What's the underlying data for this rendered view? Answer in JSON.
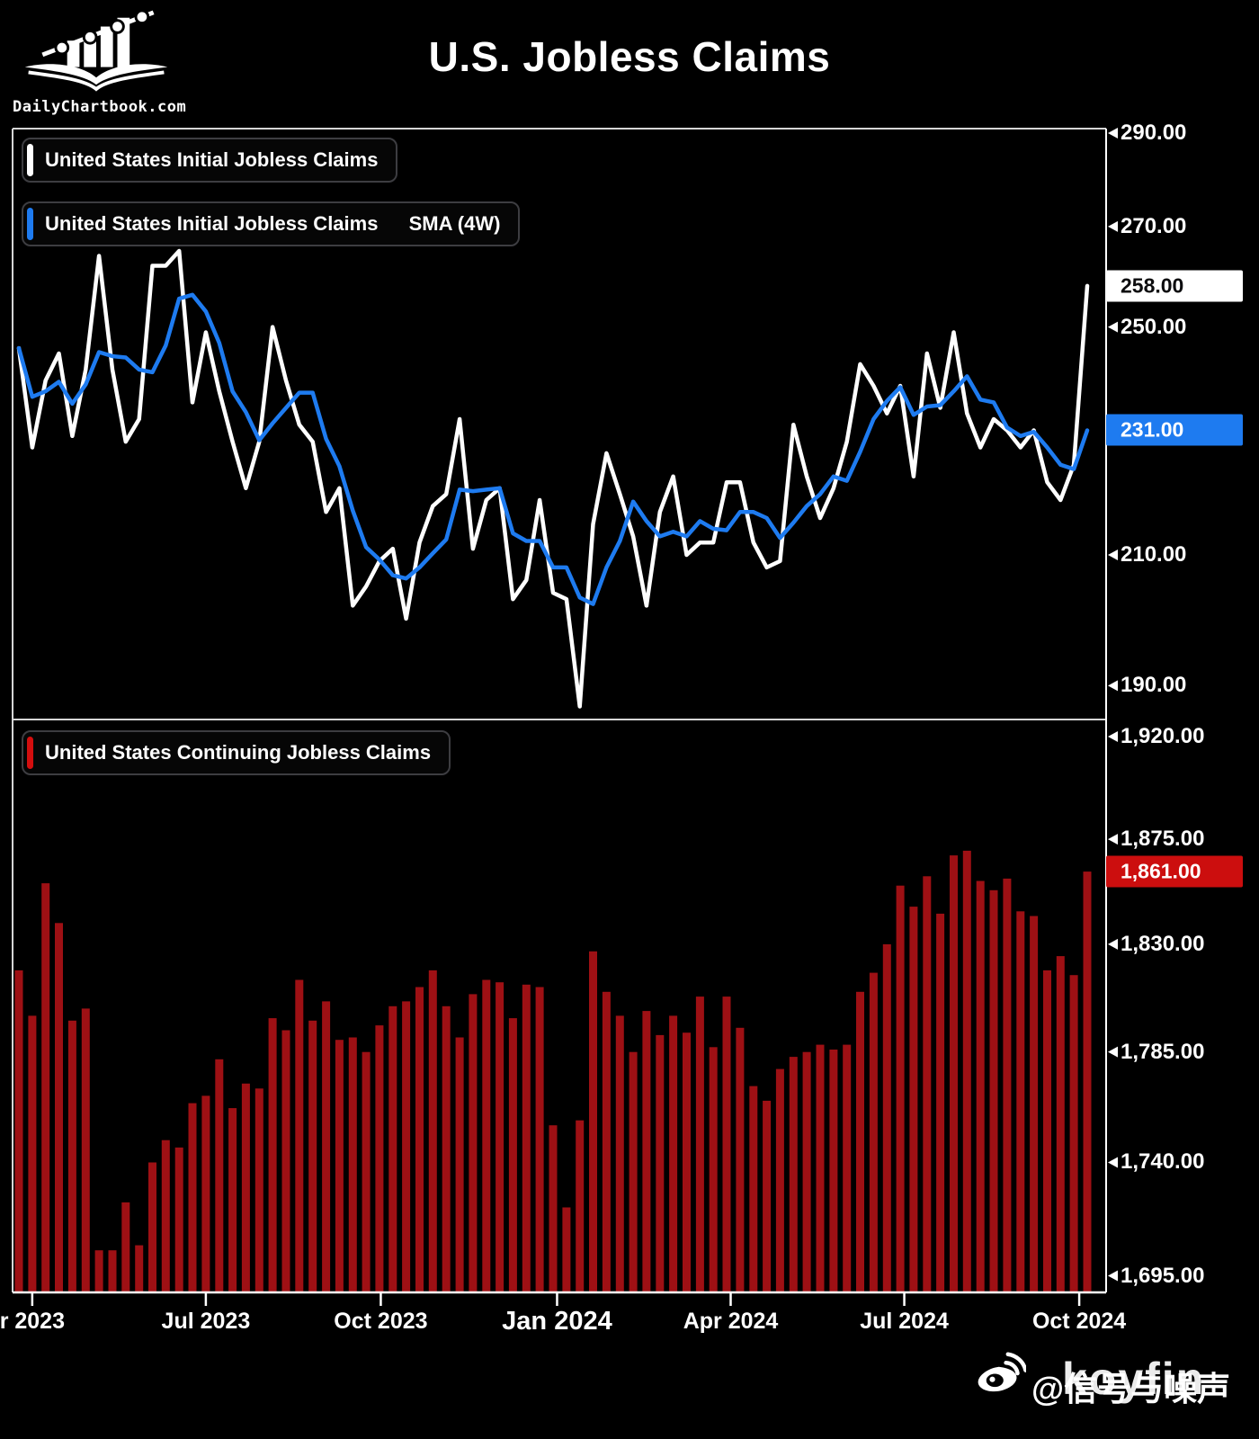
{
  "header": {
    "title": "U.S. Jobless Claims",
    "logo_caption": "DailyChartbook.com",
    "logo_icon": "book-chart-icon"
  },
  "watermark": {
    "platform_icon": "weibo-icon",
    "handle": "@信号与噪声",
    "overlay_text": "koyfin"
  },
  "chart_data": {
    "type": "line+bar",
    "frequency": "weekly",
    "x_start": "2023-03-25",
    "x_end": "2024-10-05",
    "x_tick_labels": [
      {
        "label": "r 2023",
        "week": 1.0,
        "em": false
      },
      {
        "label": "Jul 2023",
        "week": 14.0,
        "em": false
      },
      {
        "label": "Oct 2023",
        "week": 27.1,
        "em": false
      },
      {
        "label": "Jan 2024",
        "week": 40.3,
        "em": true
      },
      {
        "label": "Apr 2024",
        "week": 53.3,
        "em": false
      },
      {
        "label": "Jul 2024",
        "week": 66.3,
        "em": false
      },
      {
        "label": "Oct 2024",
        "week": 79.4,
        "em": false
      }
    ],
    "panels": [
      {
        "name": "initial-jobless-claims",
        "type": "line",
        "y_scale": "log",
        "y_range": [
          185.4,
          291.0
        ],
        "y_ticks": [
          {
            "v": 290,
            "label": "290.00"
          },
          {
            "v": 270,
            "label": "270.00"
          },
          {
            "v": 250,
            "label": "250.00"
          },
          {
            "v": 210,
            "label": "210.00"
          },
          {
            "v": 190,
            "label": "190.00"
          }
        ],
        "series": [
          {
            "name": "United States Initial Jobless Claims",
            "legend_label": "United States Initial Jobless Claims",
            "legend_suffix": "",
            "color": "#ffffff",
            "last_value": 258,
            "last_label": "258.00",
            "badge_bg": "#ffffff",
            "badge_fg": "#0d0d0f",
            "values": [
              246,
              228,
              240,
              245,
              230,
              242,
              264,
              242,
              229,
              233,
              262,
              262,
              265,
              236,
              249,
              238,
              229,
              221,
              229,
              250,
              240,
              232,
              229,
              217,
              221,
              202,
              205,
              209,
              211,
              200,
              212,
              218,
              220,
              233,
              211,
              219,
              221,
              203,
              206,
              219,
              204,
              203,
              187,
              215,
              227,
              220,
              213,
              202,
              217,
              223,
              210,
              212,
              212,
              222,
              222,
              212,
              208,
              209,
              232,
              223,
              216,
              221,
              229,
              243,
              239,
              234,
              239,
              223,
              245,
              235,
              249,
              234,
              228,
              233,
              231,
              228,
              231,
              222,
              219,
              225,
              258
            ]
          },
          {
            "name": "United States Initial Jobless Claims SMA (4W)",
            "legend_label": "United States Initial Jobless Claims",
            "legend_suffix": "SMA (4W)",
            "color": "#1e7bf0",
            "last_value": 231,
            "last_label": "231.00",
            "badge_bg": "#1e7bf0",
            "badge_fg": "#ffffff",
            "values": [
              246,
              237,
              238,
              239.75,
              235.75,
              239.25,
              245.25,
              244.5,
              244.25,
              242,
              241.5,
              246.5,
              255.5,
              256.25,
              253,
              247,
              238,
              234.25,
              229.25,
              232.25,
              235,
              237.75,
              237.75,
              229.5,
              224.75,
              217.25,
              211.25,
              209.25,
              206.75,
              206.25,
              208,
              210.25,
              212.5,
              220.75,
              220.5,
              220.75,
              221,
              213.5,
              212.25,
              212.25,
              208,
              208,
              203.25,
              202.25,
              208,
              212.25,
              218.75,
              215.5,
              213,
              213.75,
              213,
              215.5,
              214.25,
              214,
              217,
              217,
              216,
              212.75,
              215.25,
              218,
              220,
              223,
              222.25,
              227.25,
              233,
              236.25,
              238.75,
              233.75,
              235.25,
              235.5,
              238,
              240.75,
              236.5,
              236,
              231.5,
              230,
              230.75,
              228,
              225,
              224.25,
              231
            ]
          }
        ]
      },
      {
        "name": "continuing-jobless-claims",
        "type": "bar",
        "y_scale": "log",
        "y_range": [
          1688.5,
          1926.8
        ],
        "y_ticks": [
          {
            "v": 1920,
            "label": "1,920.00"
          },
          {
            "v": 1875,
            "label": "1,875.00"
          },
          {
            "v": 1830,
            "label": "1,830.00"
          },
          {
            "v": 1785,
            "label": "1,785.00"
          },
          {
            "v": 1740,
            "label": "1,740.00"
          },
          {
            "v": 1695,
            "label": "1,695.00"
          }
        ],
        "series": [
          {
            "name": "United States Continuing Jobless Claims",
            "legend_label": "United States Continuing Jobless Claims",
            "legend_suffix": "",
            "color": "#9e1014",
            "last_value": 1861,
            "last_label": "1,861.00",
            "badge_bg": "#cc0e0e",
            "badge_fg": "#ffffff",
            "legend_color": "#d40e0e",
            "values": [
              1819,
              1800,
              1856,
              1839,
              1798,
              1803,
              1705,
              1705,
              1724,
              1707,
              1740,
              1749,
              1746,
              1764,
              1767,
              1782,
              1762,
              1772,
              1770,
              1799,
              1794,
              1815,
              1798,
              1806,
              1790,
              1791,
              1785,
              1796,
              1804,
              1806,
              1812,
              1819,
              1804,
              1791,
              1809,
              1815,
              1814,
              1799,
              1813,
              1812,
              1755,
              1722,
              1757,
              1827,
              1810,
              1800,
              1785,
              1802,
              1792,
              1800,
              1793,
              1808,
              1787,
              1808,
              1795,
              1771,
              1765,
              1778,
              1783,
              1785,
              1788,
              1786,
              1788,
              1810,
              1818,
              1830,
              1855,
              1846,
              1859,
              1843,
              1868,
              1870,
              1857,
              1853,
              1858,
              1844,
              1842,
              1819,
              1825,
              1817,
              1861
            ]
          }
        ]
      }
    ]
  }
}
